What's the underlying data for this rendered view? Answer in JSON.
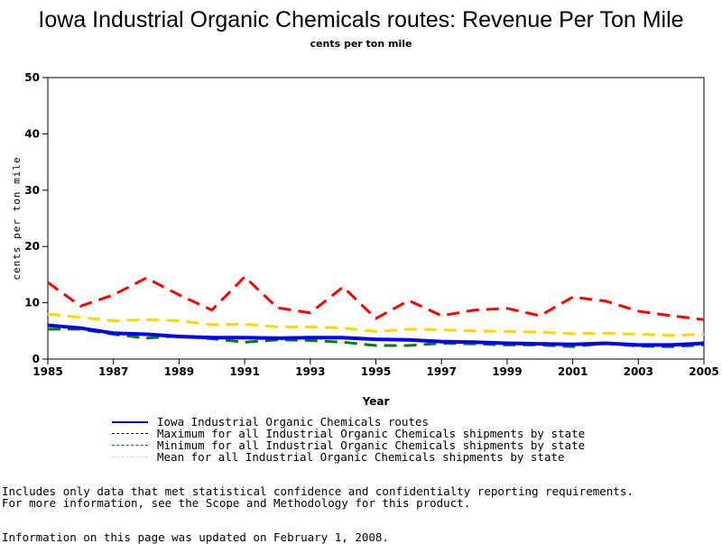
{
  "chart_data": {
    "type": "line",
    "title": "Iowa Industrial Organic Chemicals routes: Revenue Per Ton Mile",
    "subtitle": "cents per ton mile",
    "xlabel": "Year",
    "ylabel": "cents per ton mile",
    "xlim": [
      1985,
      2005
    ],
    "ylim": [
      0,
      50
    ],
    "xticks": [
      "1985",
      "1987",
      "1989",
      "1991",
      "1993",
      "1995",
      "1997",
      "1999",
      "2001",
      "2003",
      "2005"
    ],
    "yticks": [
      "0",
      "10",
      "20",
      "30",
      "40",
      "50"
    ],
    "grid": false,
    "legend_position": "bottom",
    "x": [
      1985,
      1986,
      1987,
      1988,
      1989,
      1990,
      1991,
      1992,
      1993,
      1994,
      1995,
      1996,
      1997,
      1998,
      1999,
      2000,
      2001,
      2002,
      2003,
      2004,
      2005
    ],
    "series": [
      {
        "name": "Iowa Industrial Organic Chemicals routes",
        "color": "#0000ff",
        "legend_color": "#0000ff",
        "dash": "solid",
        "values": [
          6.0,
          5.5,
          4.6,
          4.4,
          4.0,
          3.8,
          3.8,
          3.7,
          3.8,
          3.8,
          3.5,
          3.4,
          3.1,
          3.0,
          2.8,
          2.7,
          2.6,
          2.8,
          2.5,
          2.5,
          2.8
        ]
      },
      {
        "name": "Maximum for all Industrial Organic Chemicals shipments by state",
        "color": "#ff0000",
        "legend_color": "#000000",
        "dash": "dashed",
        "values": [
          13.6,
          9.4,
          11.4,
          14.4,
          11.4,
          8.7,
          14.6,
          9.1,
          8.2,
          12.8,
          7.2,
          10.4,
          7.7,
          8.7,
          9.0,
          7.7,
          11.0,
          10.3,
          8.5,
          7.7,
          7.0
        ]
      },
      {
        "name": "Minimum for all Industrial Organic Chemicals shipments by state",
        "color": "#008000",
        "legend_color": "#008000",
        "dash": "dashed",
        "values": [
          5.3,
          5.3,
          4.4,
          3.7,
          4.1,
          3.6,
          3.0,
          3.4,
          3.3,
          3.0,
          2.4,
          2.4,
          2.8,
          2.7,
          2.5,
          2.5,
          2.2,
          2.8,
          2.3,
          2.2,
          2.5
        ]
      },
      {
        "name": "Mean for all Industrial Organic Chemicals shipments by state",
        "color": "#ffd700",
        "legend_color": "#d3d3d3",
        "dash": "dashed",
        "values": [
          8.0,
          7.4,
          6.8,
          7.0,
          6.8,
          6.1,
          6.2,
          5.7,
          5.7,
          5.5,
          4.9,
          5.3,
          5.2,
          5.0,
          4.9,
          4.8,
          4.5,
          4.6,
          4.4,
          4.2,
          4.4
        ]
      }
    ]
  },
  "notes": {
    "line1": "Includes only data that met statistical confidence and confidentialty reporting requirements.",
    "line2": "For more information, see the Scope and Methodology for this product.",
    "updated": "Information on this page was updated on February 1, 2008."
  }
}
